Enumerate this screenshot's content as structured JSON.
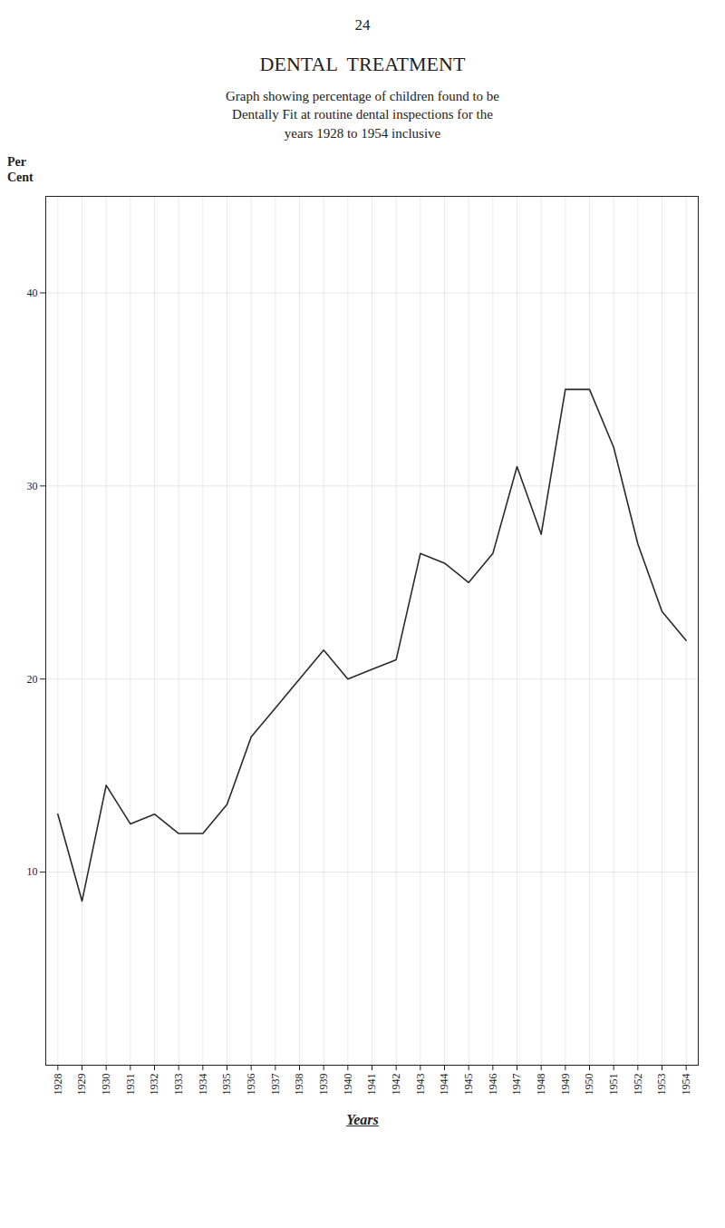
{
  "chart_data": {
    "type": "line",
    "page_number": "24",
    "title": "DENTAL  TREATMENT",
    "subtitle": [
      "Graph showing percentage of children found to be",
      "Dentally Fit at routine dental inspections for the",
      "years 1928 to 1954 inclusive"
    ],
    "ylabel": [
      "Per",
      "Cent"
    ],
    "xlabel": "Years",
    "x": [
      1928,
      1929,
      1930,
      1931,
      1932,
      1933,
      1934,
      1935,
      1936,
      1937,
      1938,
      1939,
      1940,
      1941,
      1942,
      1943,
      1944,
      1945,
      1946,
      1947,
      1948,
      1949,
      1950,
      1951,
      1952,
      1953,
      1954
    ],
    "values": [
      13.0,
      8.5,
      14.5,
      12.5,
      13.0,
      12.0,
      12.0,
      13.5,
      17.0,
      18.5,
      20.0,
      21.5,
      20.0,
      20.5,
      21.0,
      26.5,
      26.0,
      25.0,
      26.5,
      31.0,
      27.5,
      35.0,
      35.0,
      32.0,
      27.0,
      23.5,
      22.0
    ],
    "color": "#2a2a2a",
    "xlim": [
      1927.5,
      1954.5
    ],
    "xticks": [
      1928,
      1929,
      1930,
      1931,
      1932,
      1933,
      1934,
      1935,
      1936,
      1937,
      1938,
      1939,
      1940,
      1941,
      1942,
      1943,
      1944,
      1945,
      1946,
      1947,
      1948,
      1949,
      1950,
      1951,
      1952,
      1953,
      1954
    ],
    "ylim": [
      0,
      45
    ],
    "yticks": [
      10,
      20,
      30,
      40
    ],
    "grid": true
  }
}
